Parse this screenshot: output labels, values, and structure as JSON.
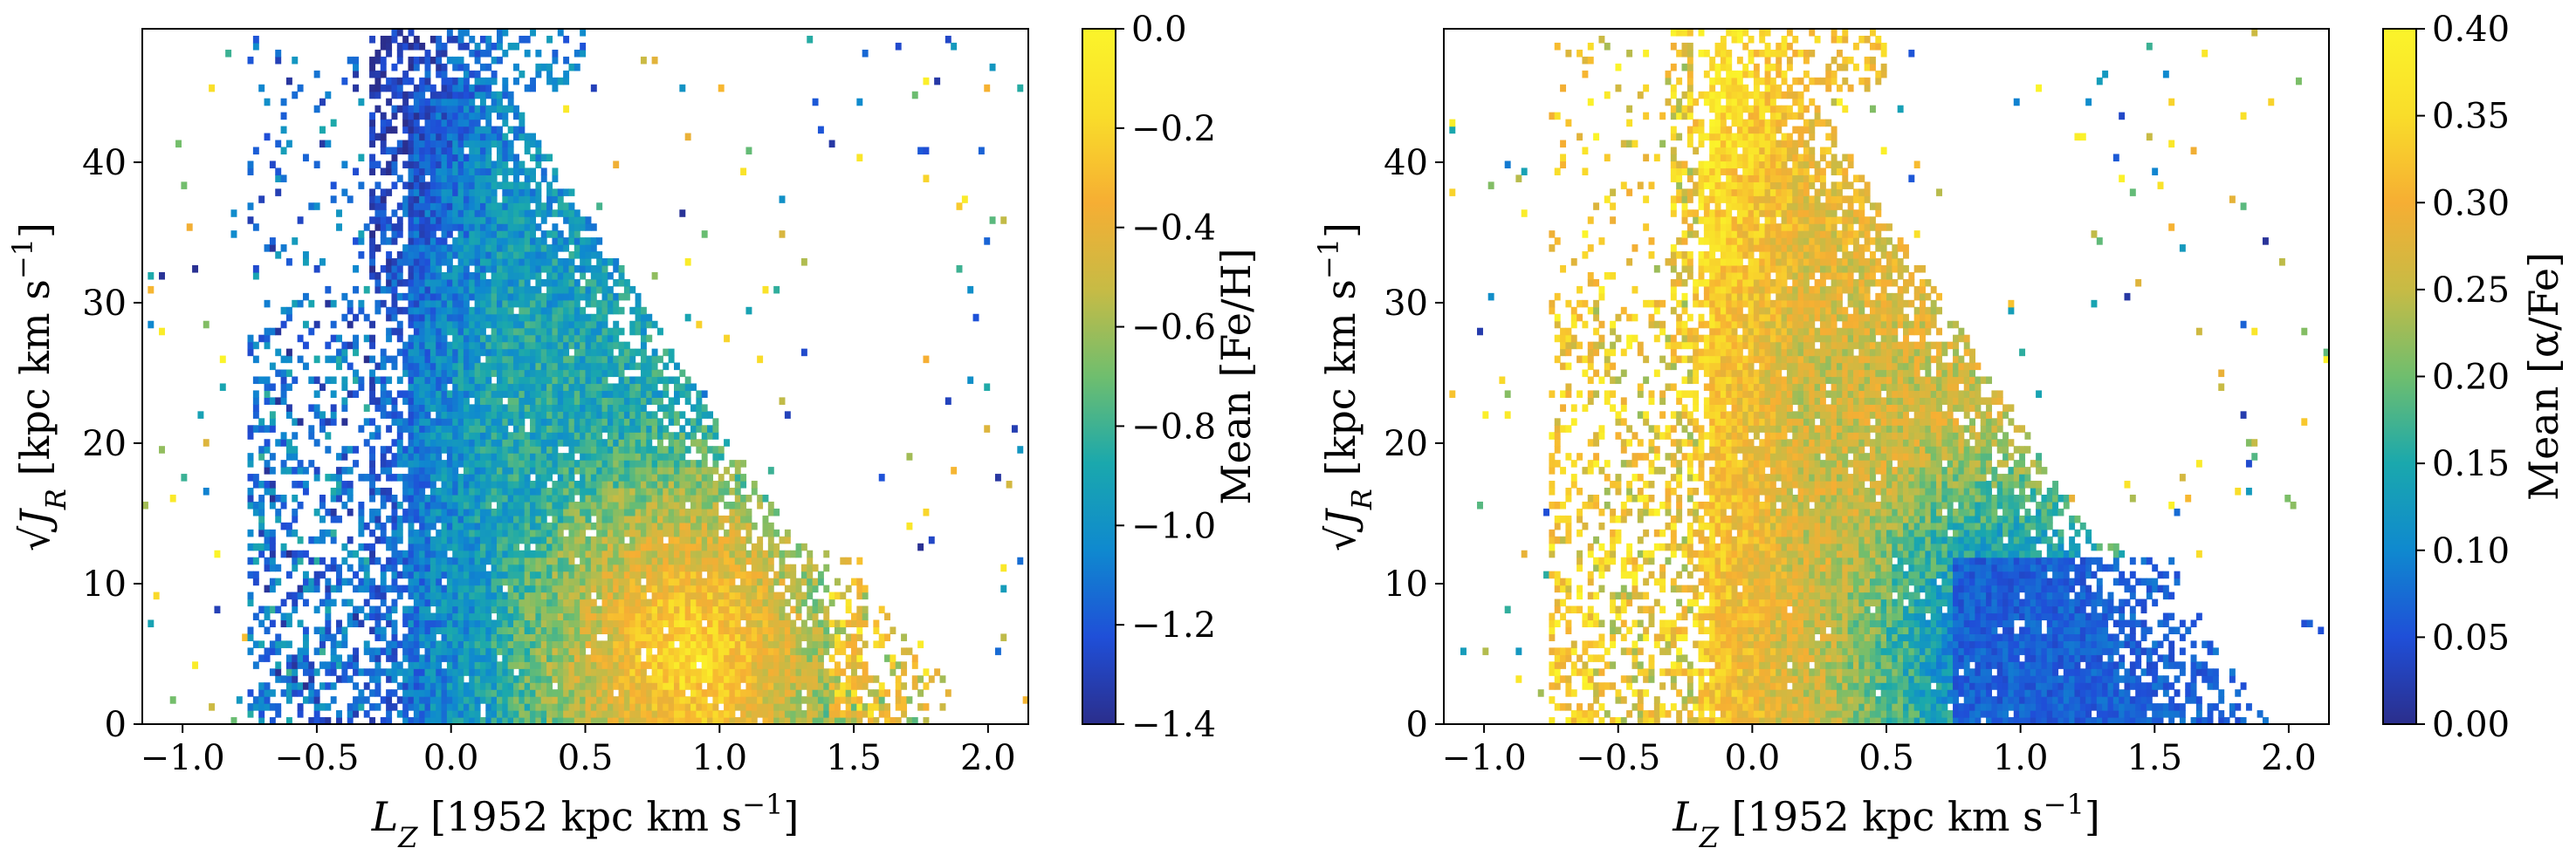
{
  "chart_data": [
    {
      "type": "heatmap",
      "xlabel": "L_Z [1952 kpc km s⁻¹]",
      "ylabel": "√J_R [kpc km s⁻¹]",
      "xlim": [
        -1.15,
        2.15
      ],
      "ylim": [
        0,
        49.5
      ],
      "xticks": [
        -1.0,
        -0.5,
        0.0,
        0.5,
        1.0,
        1.5,
        2.0
      ],
      "xtick_labels": [
        "−1.0",
        "−0.5",
        "0.0",
        "0.5",
        "1.0",
        "1.5",
        "2.0"
      ],
      "yticks": [
        0,
        10,
        20,
        30,
        40
      ],
      "ytick_labels": [
        "0",
        "10",
        "20",
        "30",
        "40"
      ],
      "grid": false,
      "colorbar": {
        "label": "Mean [Fe/H]",
        "range": [
          -1.4,
          0.0
        ],
        "ticks": [
          0.0,
          -0.2,
          -0.4,
          -0.6,
          -0.8,
          -1.0,
          -1.2,
          -1.4
        ],
        "tick_labels": [
          "0.0",
          "−0.2",
          "−0.4",
          "−0.6",
          "−0.8",
          "−1.0",
          "−1.2",
          "−1.4"
        ],
        "colormap": [
          "#2b2e8c",
          "#1f4fd8",
          "#0f89cf",
          "#1aa8ad",
          "#6fbe6e",
          "#c7bb45",
          "#f6ae33",
          "#f9dd2a",
          "#fbf42a"
        ]
      },
      "field": {
        "stream": "cold",
        "region": "upper-left",
        "bright_core_lz": 0.9,
        "bright_core_jr": 5
      }
    },
    {
      "type": "heatmap",
      "xlabel": "L_Z [1952 kpc km s⁻¹]",
      "ylabel": "√J_R [kpc km s⁻¹]",
      "xlim": [
        -1.15,
        2.15
      ],
      "ylim": [
        0,
        49.5
      ],
      "xticks": [
        -1.0,
        -0.5,
        0.0,
        0.5,
        1.0,
        1.5,
        2.0
      ],
      "xtick_labels": [
        "−1.0",
        "−0.5",
        "0.0",
        "0.5",
        "1.0",
        "1.5",
        "2.0"
      ],
      "yticks": [
        0,
        10,
        20,
        30,
        40
      ],
      "ytick_labels": [
        "0",
        "10",
        "20",
        "30",
        "40"
      ],
      "grid": false,
      "colorbar": {
        "label": "Mean [α/Fe]",
        "range": [
          0.0,
          0.4
        ],
        "ticks": [
          0.4,
          0.35,
          0.3,
          0.25,
          0.2,
          0.15,
          0.1,
          0.05,
          0.0
        ],
        "tick_labels": [
          "0.40",
          "0.35",
          "0.30",
          "0.25",
          "0.20",
          "0.15",
          "0.10",
          "0.05",
          "0.00"
        ],
        "colormap": [
          "#2b2e8c",
          "#1f4fd8",
          "#0f89cf",
          "#1aa8ad",
          "#6fbe6e",
          "#c7bb45",
          "#f6ae33",
          "#f9dd2a",
          "#fbf42a"
        ]
      },
      "field": {
        "stream": "warm",
        "region": "upper-left",
        "bright_core_lz": 1.0,
        "bright_core_jr": 5
      }
    }
  ]
}
